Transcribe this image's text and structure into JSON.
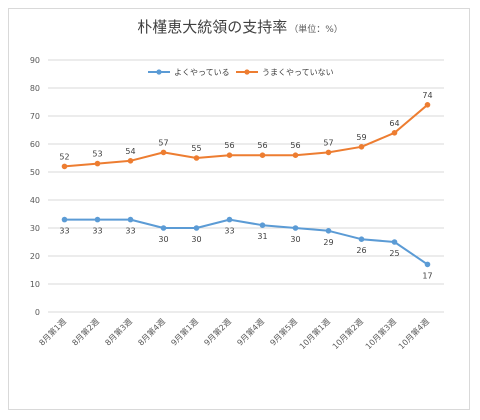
{
  "chart_data": {
    "type": "line",
    "title": "朴槿恵大統領の支持率",
    "unit": "（単位：%）",
    "categories": [
      "8月第1週",
      "8月第2週",
      "8月第3週",
      "8月第4週",
      "9月第1週",
      "9月第2週",
      "9月第4週",
      "9月第5週",
      "10月第1週",
      "10月第2週",
      "10月第3週",
      "10月第4週"
    ],
    "ylim": [
      0,
      90
    ],
    "yticks": [
      0,
      10,
      20,
      30,
      40,
      50,
      60,
      70,
      80,
      90
    ],
    "grid": true,
    "legend": "top",
    "series": [
      {
        "name": "よくやっている",
        "color": "#5b9bd5",
        "values": [
          33,
          33,
          33,
          30,
          30,
          33,
          31,
          30,
          29,
          26,
          25,
          17
        ]
      },
      {
        "name": "うまくやっていない",
        "color": "#ed7d31",
        "values": [
          52,
          53,
          54,
          57,
          55,
          56,
          56,
          56,
          57,
          59,
          64,
          74
        ]
      }
    ]
  }
}
